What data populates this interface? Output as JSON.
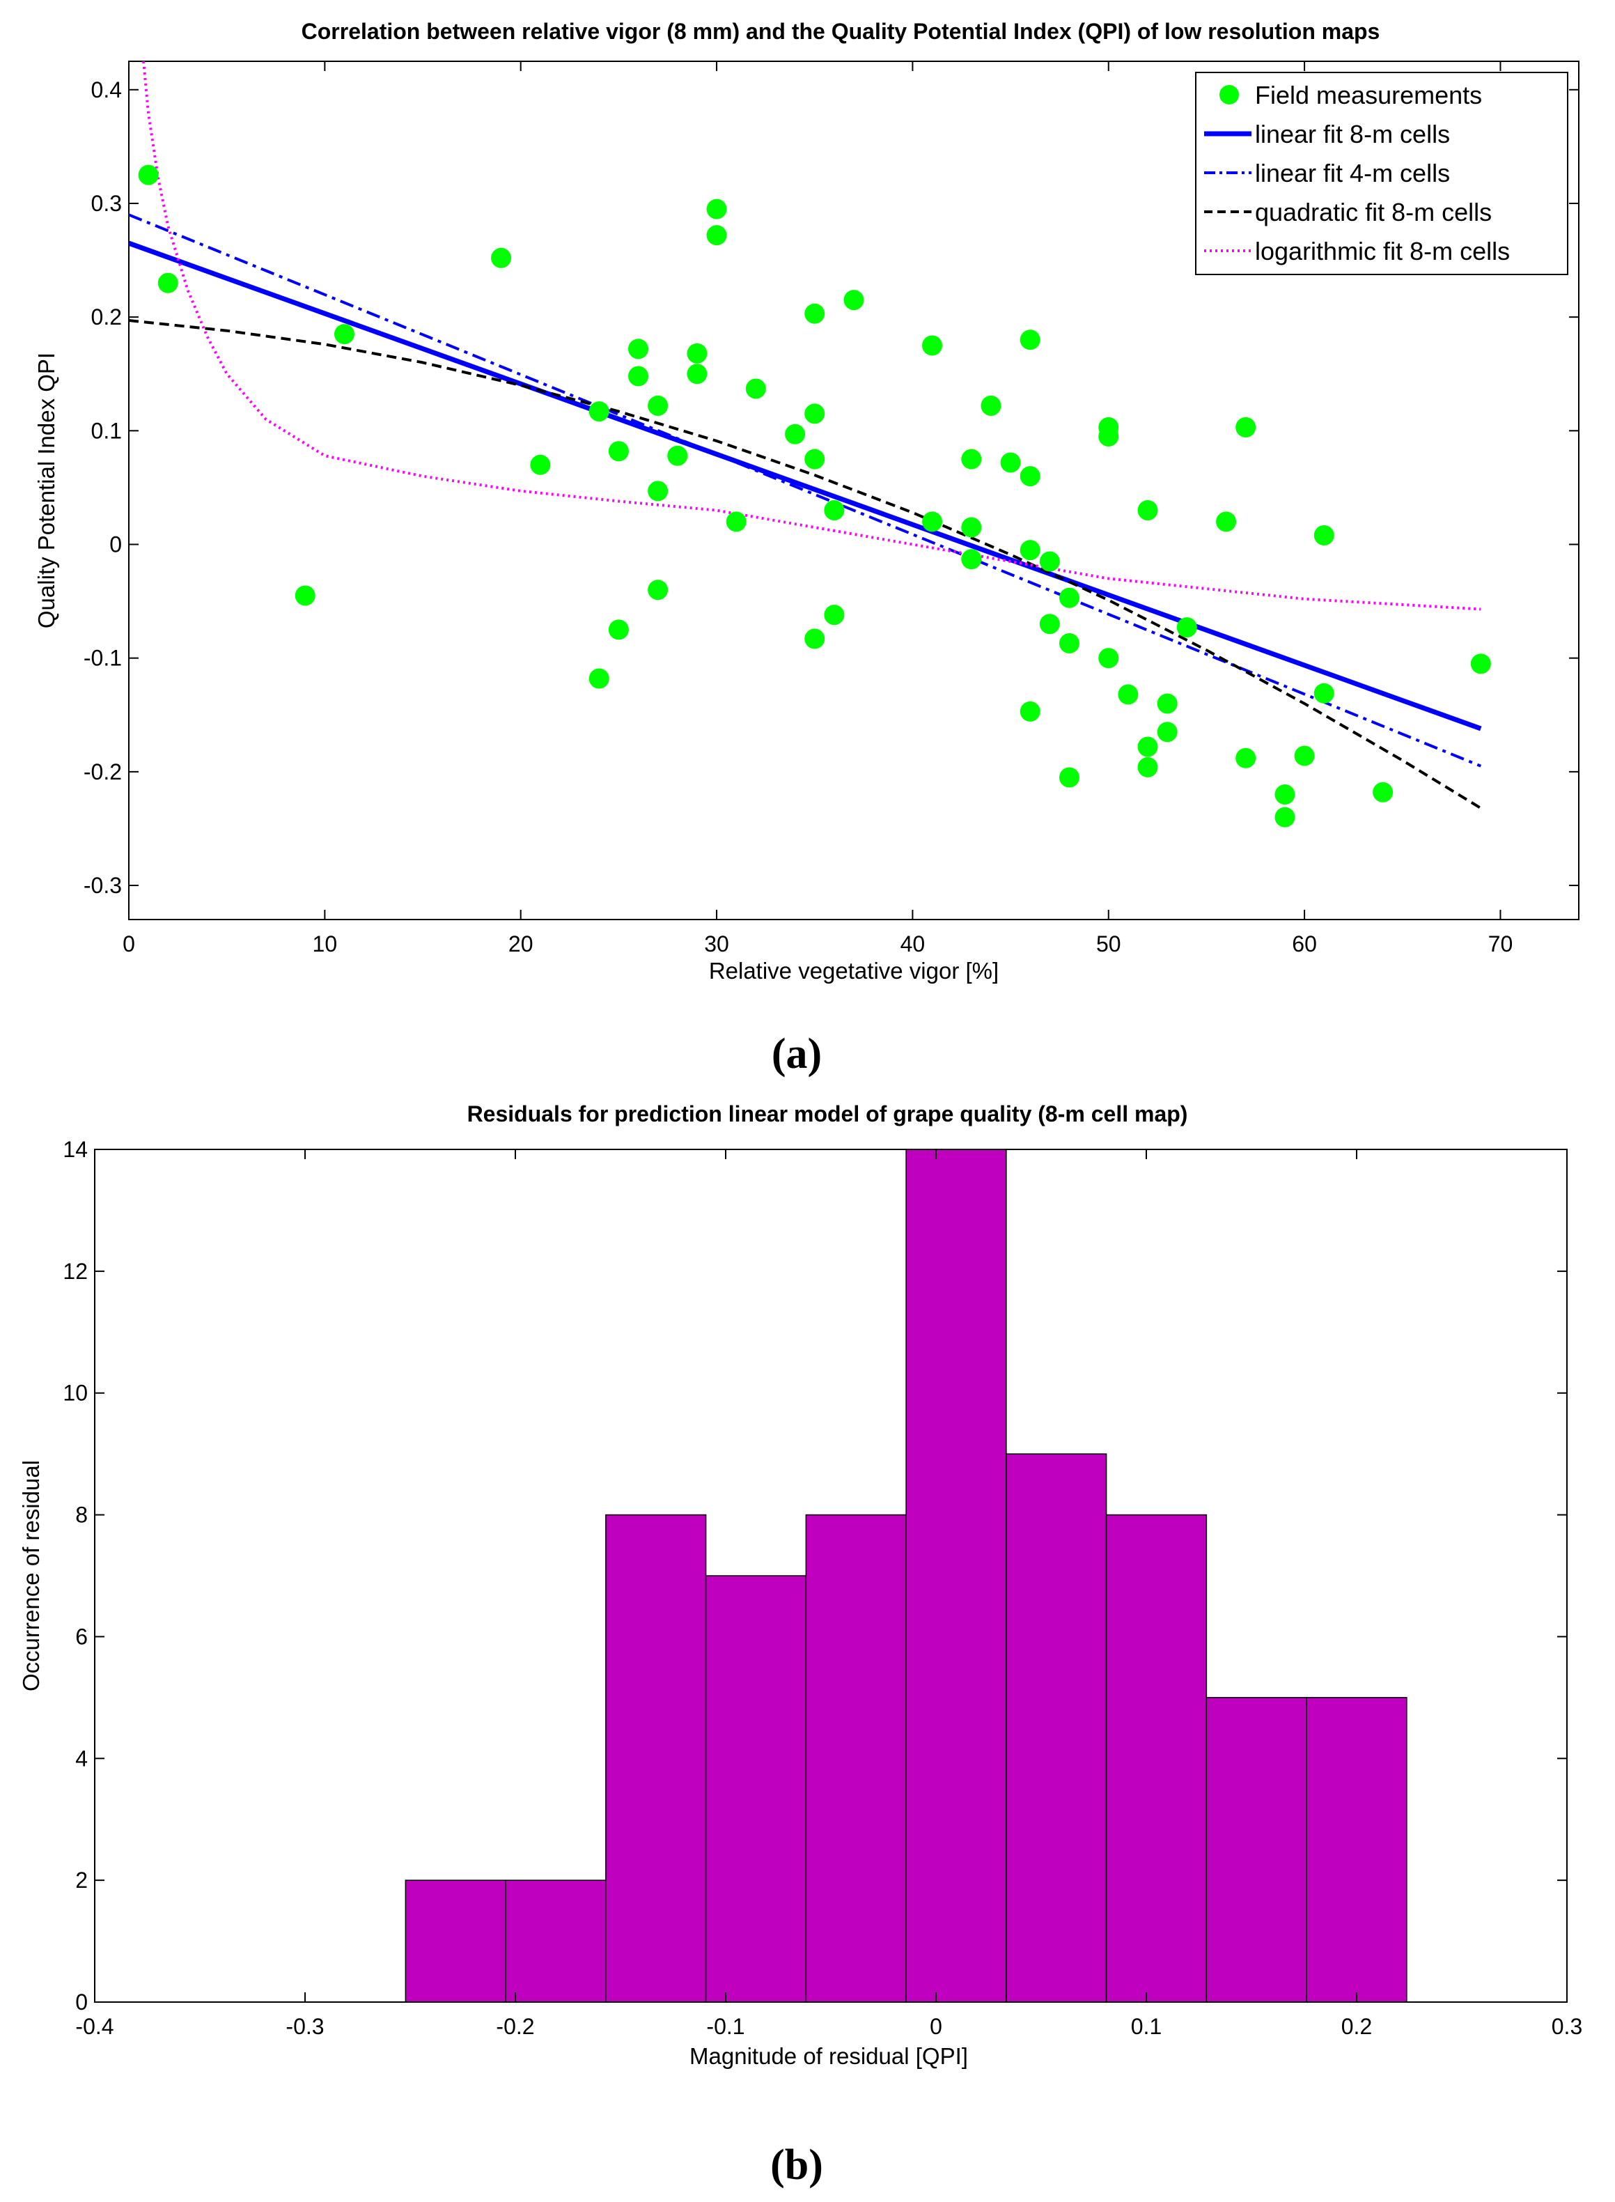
{
  "chart_data": [
    {
      "type": "scatter",
      "title": "Correlation between relative vigor (8 mm) and the Quality Potential Index (QPI) of low resolution maps",
      "xlabel": "Relative vegetative vigor [%]",
      "ylabel": "Quality Potential Index QPI",
      "xlim": [
        0,
        74
      ],
      "ylim": [
        -0.33,
        0.425
      ],
      "xticks": [
        "0",
        "10",
        "20",
        "30",
        "40",
        "50",
        "60",
        "70"
      ],
      "yticks": [
        "-0.3",
        "-0.2",
        "-0.1",
        "0",
        "0.1",
        "0.2",
        "0.3",
        "0.4"
      ],
      "grid": false,
      "legend_position": "top-right",
      "caption": "(a)",
      "series": [
        {
          "name": "Field measurements",
          "kind": "points",
          "color": "#00ff00",
          "points": [
            [
              1,
              0.325
            ],
            [
              2,
              0.23
            ],
            [
              9,
              -0.045
            ],
            [
              11,
              0.185
            ],
            [
              19,
              0.252
            ],
            [
              21,
              0.07
            ],
            [
              24,
              0.117
            ],
            [
              24,
              -0.118
            ],
            [
              25,
              0.082
            ],
            [
              25,
              -0.075
            ],
            [
              26,
              0.172
            ],
            [
              26,
              0.148
            ],
            [
              27,
              0.122
            ],
            [
              27,
              0.047
            ],
            [
              27,
              -0.04
            ],
            [
              28,
              0.078
            ],
            [
              29,
              0.168
            ],
            [
              29,
              0.15
            ],
            [
              30,
              0.295
            ],
            [
              30,
              0.272
            ],
            [
              31,
              0.02
            ],
            [
              32,
              0.137
            ],
            [
              34,
              0.097
            ],
            [
              35,
              0.203
            ],
            [
              35,
              0.115
            ],
            [
              35,
              0.075
            ],
            [
              35,
              -0.083
            ],
            [
              36,
              0.03
            ],
            [
              36,
              -0.062
            ],
            [
              37,
              0.215
            ],
            [
              41,
              0.175
            ],
            [
              41,
              0.02
            ],
            [
              43,
              0.075
            ],
            [
              43,
              0.015
            ],
            [
              43,
              -0.013
            ],
            [
              44,
              0.122
            ],
            [
              45,
              0.072
            ],
            [
              46,
              0.18
            ],
            [
              46,
              0.06
            ],
            [
              46,
              -0.005
            ],
            [
              46,
              -0.147
            ],
            [
              47,
              -0.015
            ],
            [
              47,
              -0.07
            ],
            [
              48,
              -0.047
            ],
            [
              48,
              -0.087
            ],
            [
              48,
              -0.205
            ],
            [
              50,
              0.103
            ],
            [
              50,
              0.095
            ],
            [
              50,
              -0.1
            ],
            [
              51,
              -0.132
            ],
            [
              52,
              0.03
            ],
            [
              52,
              -0.178
            ],
            [
              52,
              -0.196
            ],
            [
              53,
              -0.14
            ],
            [
              53,
              -0.165
            ],
            [
              54,
              -0.073
            ],
            [
              56,
              0.02
            ],
            [
              57,
              0.103
            ],
            [
              57,
              -0.188
            ],
            [
              59,
              -0.22
            ],
            [
              59,
              -0.24
            ],
            [
              60,
              -0.186
            ],
            [
              61,
              0.008
            ],
            [
              61,
              -0.131
            ],
            [
              64,
              -0.218
            ],
            [
              69,
              -0.105
            ]
          ]
        },
        {
          "name": "linear fit 8-m cells",
          "kind": "line",
          "color": "#0000ff",
          "style": "solid",
          "x": [
            0,
            69
          ],
          "y": [
            0.265,
            -0.162
          ]
        },
        {
          "name": "linear fit 4-m cells",
          "kind": "line",
          "color": "#0000ff",
          "style": "dash-dot",
          "x": [
            0,
            69
          ],
          "y": [
            0.29,
            -0.195
          ]
        },
        {
          "name": "quadratic fit 8-m cells",
          "kind": "line",
          "color": "#000000",
          "style": "dashed",
          "x": [
            0,
            5,
            10,
            15,
            20,
            25,
            30,
            35,
            40,
            45,
            50,
            55,
            60,
            65,
            69
          ],
          "y": [
            0.197,
            0.188,
            0.176,
            0.16,
            0.14,
            0.117,
            0.091,
            0.061,
            0.028,
            -0.009,
            -0.049,
            -0.093,
            -0.14,
            -0.19,
            -0.232
          ]
        },
        {
          "name": "logarithmic fit 8-m cells",
          "kind": "line",
          "color": "#ff00ff",
          "style": "dotted",
          "x": [
            0.75,
            1,
            1.5,
            2,
            3,
            4,
            5,
            7,
            10,
            15,
            20,
            25,
            30,
            40,
            50,
            60,
            69
          ],
          "y": [
            0.425,
            0.379,
            0.322,
            0.28,
            0.224,
            0.183,
            0.15,
            0.11,
            0.078,
            0.06,
            0.047,
            0.038,
            0.03,
            0.0,
            -0.03,
            -0.048,
            -0.057
          ]
        }
      ]
    },
    {
      "type": "bar",
      "title": "Residuals for prediction linear model of grape quality (8-m cell map)",
      "xlabel": "Magnitude of residual [QPI]",
      "ylabel": "Occurrence of residual",
      "xlim": [
        -0.4,
        0.3
      ],
      "ylim": [
        0,
        14
      ],
      "xticks": [
        "-0.4",
        "-0.3",
        "-0.2",
        "-0.1",
        "0",
        "0.1",
        "0.2",
        "0.3"
      ],
      "yticks": [
        "0",
        "2",
        "4",
        "6",
        "8",
        "10",
        "12",
        "14"
      ],
      "grid": false,
      "caption": "(b)",
      "bar_color": "#bf00bf",
      "bin_edges": [
        -0.2522,
        -0.2046,
        -0.157,
        -0.1094,
        -0.0618,
        -0.0142,
        0.0334,
        0.081,
        0.1286,
        0.1762,
        0.2238
      ],
      "values": [
        2,
        2,
        8,
        7,
        8,
        14,
        9,
        8,
        5,
        5
      ]
    }
  ]
}
